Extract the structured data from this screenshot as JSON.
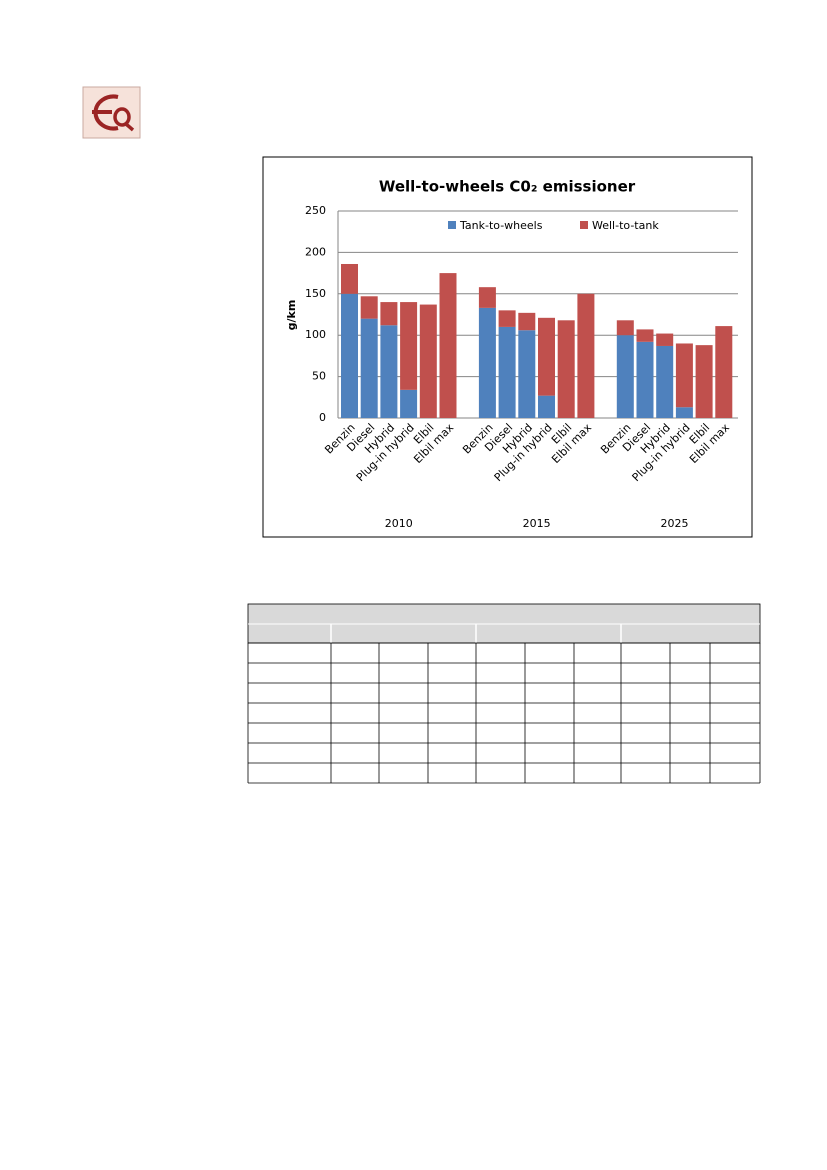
{
  "chart_data": {
    "type": "stacked_bar",
    "title": "Well-to-wheels C0₂ emissioner",
    "ylabel": "g/km",
    "categories": [
      "Benzin",
      "Diesel",
      "Hybrid",
      "Plug-in hybrid",
      "Elbil",
      "Elbil max",
      "Benzin",
      "Diesel",
      "Hybrid",
      "Plug-in hybrid",
      "Elbil",
      "Elbil max",
      "Benzin",
      "Diesel",
      "Hybrid",
      "Plug-in hybrid",
      "Elbil",
      "Elbil max"
    ],
    "groups": [
      "2010",
      "2015",
      "2025"
    ],
    "series": [
      {
        "name": "Tank-to-wheels",
        "color": "#4f81bd",
        "values": [
          150,
          120,
          112,
          34,
          0,
          0,
          133,
          110,
          106,
          27,
          0,
          0,
          100,
          92,
          87,
          13,
          0,
          0
        ]
      },
      {
        "name": "Well-to-tank",
        "color": "#c0504d",
        "values": [
          36,
          27,
          28,
          106,
          137,
          175,
          25,
          20,
          21,
          94,
          118,
          150,
          18,
          15,
          15,
          77,
          88,
          111
        ]
      }
    ],
    "ylim": [
      0,
      250
    ],
    "yticks": [
      0,
      50,
      100,
      150,
      200,
      250
    ],
    "grid": true,
    "legend": "top"
  }
}
